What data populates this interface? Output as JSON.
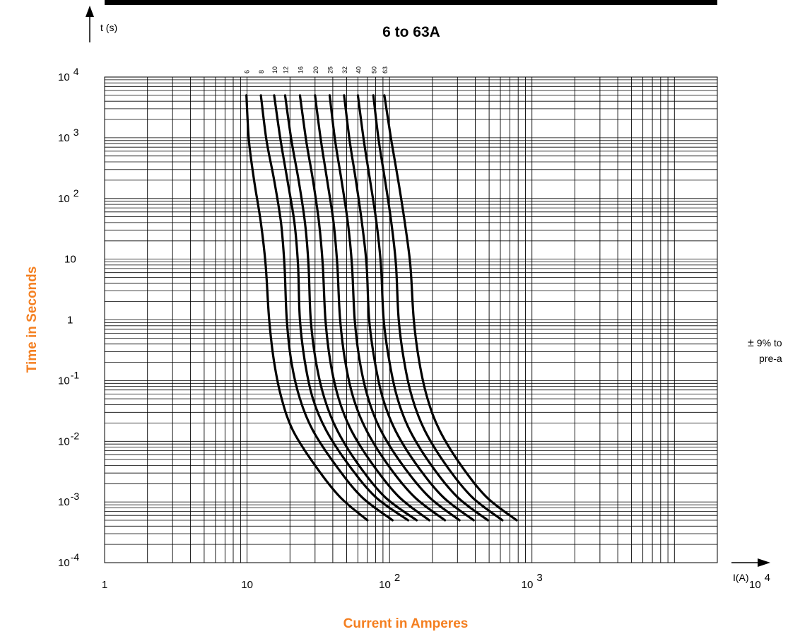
{
  "chart_data": {
    "type": "line",
    "title": "6 to 63A",
    "xlabel": "Current in Amperes",
    "ylabel": "Time in Seconds",
    "x_unit_label": "I(A)",
    "y_unit_label": "t (s)",
    "x_scale": "log",
    "y_scale": "log",
    "xlim": [
      1,
      20000
    ],
    "ylim": [
      0.0001,
      10000
    ],
    "grid": true,
    "x_ticks": [
      {
        "value": 1,
        "base": "1",
        "exp": ""
      },
      {
        "value": 10,
        "base": "10",
        "exp": ""
      },
      {
        "value": 100,
        "base": "10",
        "exp": "2"
      },
      {
        "value": 1000,
        "base": "10",
        "exp": "3"
      },
      {
        "value": 10000,
        "base": "10",
        "exp": "4"
      }
    ],
    "y_ticks": [
      {
        "value": 10000,
        "base": "10",
        "exp": "4",
        "style": "space"
      },
      {
        "value": 1000,
        "base": "10",
        "exp": "3",
        "style": "space"
      },
      {
        "value": 100,
        "base": "10",
        "exp": "2",
        "style": "space"
      },
      {
        "value": 10,
        "base": "10",
        "exp": "",
        "style": "plain"
      },
      {
        "value": 1,
        "base": "1",
        "exp": "",
        "style": "plain"
      },
      {
        "value": 0.1,
        "base": "10",
        "exp": "-1",
        "style": "tight"
      },
      {
        "value": 0.01,
        "base": "10",
        "exp": "-2",
        "style": "tight"
      },
      {
        "value": 0.001,
        "base": "10",
        "exp": "-3",
        "style": "tight"
      },
      {
        "value": 0.0001,
        "base": "10",
        "exp": "-4",
        "style": "tight"
      }
    ],
    "annotation": {
      "symbol": "±",
      "line1": "9% to",
      "line2": "pre-a"
    },
    "series": [
      {
        "name": "6",
        "points": [
          [
            9.9,
            5000
          ],
          [
            10.3,
            900
          ],
          [
            11.2,
            200
          ],
          [
            12.5,
            40
          ],
          [
            13.5,
            8
          ],
          [
            14.3,
            1
          ],
          [
            15.5,
            0.2
          ],
          [
            17.5,
            0.05
          ],
          [
            21,
            0.015
          ],
          [
            30,
            0.004
          ],
          [
            45,
            0.0012
          ],
          [
            70,
            0.0005
          ]
        ]
      },
      {
        "name": "8",
        "points": [
          [
            12.5,
            5000
          ],
          [
            13.7,
            900
          ],
          [
            15.5,
            200
          ],
          [
            17.3,
            40
          ],
          [
            18.3,
            8
          ],
          [
            19,
            1
          ],
          [
            20.5,
            0.2
          ],
          [
            23.5,
            0.05
          ],
          [
            29,
            0.015
          ],
          [
            42,
            0.004
          ],
          [
            64,
            0.0012
          ],
          [
            105,
            0.0005
          ]
        ]
      },
      {
        "name": "10",
        "points": [
          [
            15.5,
            5000
          ],
          [
            17.2,
            900
          ],
          [
            19.2,
            200
          ],
          [
            21.5,
            40
          ],
          [
            22.8,
            8
          ],
          [
            23.5,
            1
          ],
          [
            25.5,
            0.2
          ],
          [
            29,
            0.05
          ],
          [
            36,
            0.015
          ],
          [
            52,
            0.004
          ],
          [
            80,
            0.0012
          ],
          [
            135,
            0.0005
          ]
        ]
      },
      {
        "name": "12",
        "points": [
          [
            18.5,
            5000
          ],
          [
            20.5,
            900
          ],
          [
            23,
            200
          ],
          [
            25.5,
            40
          ],
          [
            27,
            8
          ],
          [
            28,
            1
          ],
          [
            30.5,
            0.2
          ],
          [
            35,
            0.05
          ],
          [
            43,
            0.015
          ],
          [
            61,
            0.004
          ],
          [
            93,
            0.0012
          ],
          [
            155,
            0.0005
          ]
        ]
      },
      {
        "name": "16",
        "points": [
          [
            23.5,
            5000
          ],
          [
            26,
            900
          ],
          [
            29,
            200
          ],
          [
            32,
            40
          ],
          [
            34,
            8
          ],
          [
            35.5,
            1
          ],
          [
            38.5,
            0.2
          ],
          [
            44,
            0.05
          ],
          [
            54,
            0.015
          ],
          [
            77,
            0.004
          ],
          [
            117,
            0.0012
          ],
          [
            190,
            0.0005
          ]
        ]
      },
      {
        "name": "20",
        "points": [
          [
            30,
            5000
          ],
          [
            33,
            900
          ],
          [
            36.5,
            200
          ],
          [
            40.5,
            40
          ],
          [
            43,
            8
          ],
          [
            45,
            1
          ],
          [
            49,
            0.2
          ],
          [
            56,
            0.05
          ],
          [
            69,
            0.015
          ],
          [
            98,
            0.004
          ],
          [
            150,
            0.0012
          ],
          [
            245,
            0.0005
          ]
        ]
      },
      {
        "name": "25",
        "points": [
          [
            38,
            5000
          ],
          [
            41.5,
            900
          ],
          [
            46,
            200
          ],
          [
            51,
            40
          ],
          [
            54.5,
            8
          ],
          [
            57,
            1
          ],
          [
            62,
            0.2
          ],
          [
            71,
            0.05
          ],
          [
            87,
            0.015
          ],
          [
            124,
            0.004
          ],
          [
            190,
            0.0012
          ],
          [
            310,
            0.0005
          ]
        ]
      },
      {
        "name": "32",
        "points": [
          [
            48,
            5000
          ],
          [
            52.5,
            900
          ],
          [
            58,
            200
          ],
          [
            64,
            40
          ],
          [
            69,
            8
          ],
          [
            72,
            1
          ],
          [
            79,
            0.2
          ],
          [
            90,
            0.05
          ],
          [
            110,
            0.015
          ],
          [
            156,
            0.004
          ],
          [
            238,
            0.0012
          ],
          [
            390,
            0.0005
          ]
        ]
      },
      {
        "name": "40",
        "points": [
          [
            60,
            5000
          ],
          [
            66,
            900
          ],
          [
            73,
            200
          ],
          [
            81,
            40
          ],
          [
            87,
            8
          ],
          [
            91,
            1
          ],
          [
            100,
            0.2
          ],
          [
            114,
            0.05
          ],
          [
            139,
            0.015
          ],
          [
            197,
            0.004
          ],
          [
            300,
            0.0012
          ],
          [
            490,
            0.0005
          ]
        ]
      },
      {
        "name": "50",
        "points": [
          [
            77,
            5000
          ],
          [
            84,
            900
          ],
          [
            93,
            200
          ],
          [
            103,
            40
          ],
          [
            111,
            8
          ],
          [
            116,
            1
          ],
          [
            127,
            0.2
          ],
          [
            145,
            0.05
          ],
          [
            177,
            0.015
          ],
          [
            250,
            0.004
          ],
          [
            380,
            0.0012
          ],
          [
            620,
            0.0005
          ]
        ]
      },
      {
        "name": "63",
        "points": [
          [
            92,
            5000
          ],
          [
            103,
            900
          ],
          [
            115,
            200
          ],
          [
            128,
            40
          ],
          [
            140,
            8
          ],
          [
            148,
            1
          ],
          [
            162,
            0.2
          ],
          [
            185,
            0.05
          ],
          [
            225,
            0.015
          ],
          [
            318,
            0.004
          ],
          [
            480,
            0.0012
          ],
          [
            780,
            0.0005
          ]
        ]
      }
    ]
  }
}
